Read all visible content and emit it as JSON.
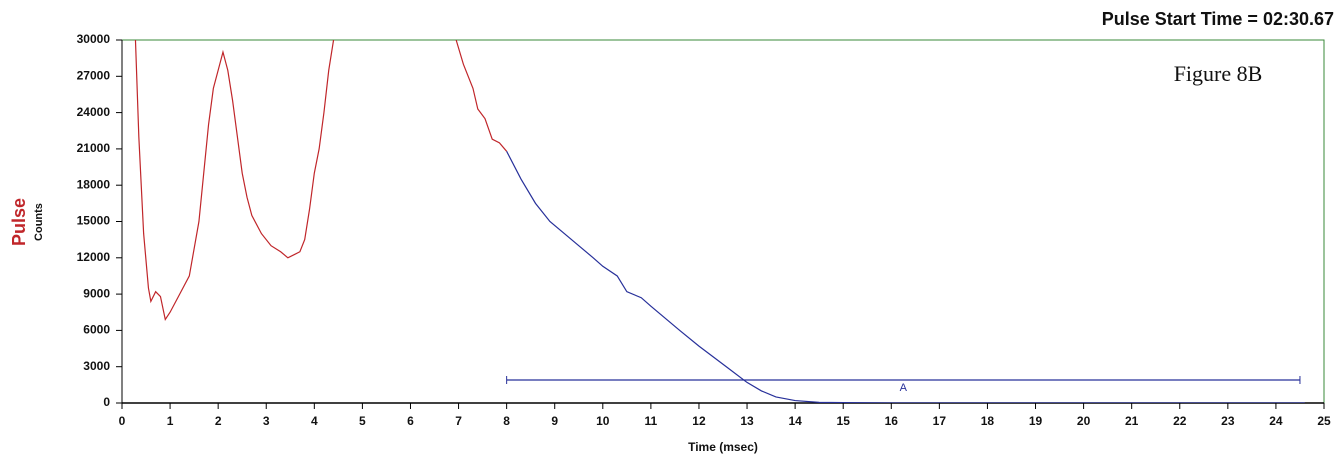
{
  "chart_data": {
    "type": "line",
    "title": "Pulse Start Time = 02:30.67",
    "annotation": "Figure 8B",
    "side_label": "Pulse",
    "ylabel": "Counts",
    "xlabel": "Time (msec)",
    "xlim": [
      0,
      25
    ],
    "ylim": [
      0,
      30000
    ],
    "xticks": [
      0,
      1,
      2,
      3,
      4,
      5,
      6,
      7,
      8,
      9,
      10,
      11,
      12,
      13,
      14,
      15,
      16,
      17,
      18,
      19,
      20,
      21,
      22,
      23,
      24,
      25
    ],
    "yticks": [
      0,
      3000,
      6000,
      9000,
      12000,
      15000,
      18000,
      21000,
      24000,
      27000,
      30000
    ],
    "grid": false,
    "series": [
      {
        "color": "#c0262a",
        "x": [
          0.28,
          0.35,
          0.45,
          0.55,
          0.6,
          0.7,
          0.8,
          0.9,
          1.0,
          1.2,
          1.4,
          1.6,
          1.7,
          1.8,
          1.9,
          2.0,
          2.1,
          2.2,
          2.3,
          2.4,
          2.5,
          2.6,
          2.7,
          2.9,
          3.1,
          3.3,
          3.45,
          3.6,
          3.7,
          3.8,
          3.9,
          4.0,
          4.1,
          4.2,
          4.3,
          4.4,
          5.5,
          6.95,
          7.1,
          7.3,
          7.4,
          7.55,
          7.7,
          7.85,
          8.0
        ],
        "values": [
          30000,
          22000,
          14000,
          9500,
          8400,
          9200,
          8800,
          6900,
          7500,
          9000,
          10500,
          15000,
          19000,
          23000,
          26000,
          27500,
          29000,
          27500,
          25000,
          22000,
          19000,
          17000,
          15500,
          14000,
          13000,
          12500,
          12000,
          12300,
          12500,
          13500,
          16000,
          19000,
          21000,
          24000,
          27500,
          30000,
          null,
          30000,
          28000,
          26000,
          24300,
          23500,
          21800,
          21500,
          20800
        ]
      },
      {
        "color": "#27309a",
        "x": [
          8.0,
          8.3,
          8.6,
          8.9,
          9.2,
          9.5,
          9.8,
          10.0,
          10.3,
          10.5,
          10.8,
          11.0,
          11.3,
          11.6,
          12.0,
          12.3,
          12.6,
          13.0,
          13.3,
          13.6,
          14.0,
          14.5,
          15.0,
          16.0,
          24.6
        ],
        "values": [
          20800,
          18500,
          16500,
          15000,
          14000,
          13000,
          12000,
          11300,
          10500,
          9200,
          8700,
          8000,
          7000,
          6000,
          4700,
          3800,
          2900,
          1700,
          1000,
          500,
          200,
          50,
          30,
          0,
          0
        ]
      }
    ],
    "range_marker": {
      "label": "A",
      "x": [
        8,
        24.5
      ],
      "y": 1900,
      "color": "#27309a"
    },
    "frame_color": "#3a8a3a"
  }
}
